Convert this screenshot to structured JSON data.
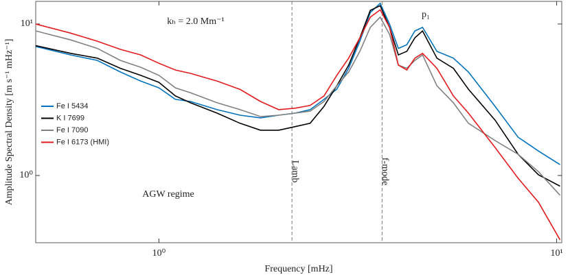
{
  "chart_data": {
    "type": "line",
    "xlabel": "Frequency [mHz]",
    "ylabel": "Amplitude Spectral Density [m s⁻¹ mHz⁻¹]",
    "xscale": "log",
    "yscale": "log",
    "xlim": [
      0.49,
      10.3
    ],
    "ylim": [
      0.36,
      14.1
    ],
    "xticks": [
      {
        "value": 1,
        "label": "10⁰"
      },
      {
        "value": 10,
        "label": "10¹"
      }
    ],
    "yticks": [
      {
        "value": 1,
        "label": "10⁰"
      },
      {
        "value": 10,
        "label": "10¹"
      }
    ],
    "legend": "center left",
    "annotations": [
      "kₕ = 2.0 Mm⁻¹",
      "p₁",
      "AGW regime"
    ],
    "vlines": [
      {
        "x": 2.16,
        "label": "Lamb"
      },
      {
        "x": 3.64,
        "label": "f-mode"
      }
    ],
    "x": [
      0.49,
      0.6,
      0.7,
      0.8,
      0.9,
      1.0,
      1.1,
      1.2,
      1.4,
      1.6,
      1.8,
      2.0,
      2.2,
      2.4,
      2.6,
      2.8,
      3.0,
      3.2,
      3.4,
      3.6,
      3.8,
      4.0,
      4.2,
      4.4,
      4.6,
      5.0,
      5.5,
      6,
      7,
      8,
      9,
      10.2
    ],
    "series": [
      {
        "name": "Fe I 5434",
        "color": "#0072bd",
        "values": [
          7.1,
          6.25,
          5.75,
          4.82,
          4.2,
          3.79,
          3.18,
          3.08,
          2.72,
          2.5,
          2.4,
          2.5,
          2.58,
          2.72,
          3.18,
          3.71,
          5.1,
          7.7,
          11.9,
          13.7,
          10,
          6.9,
          7.3,
          9.0,
          9.5,
          6.6,
          5.95,
          4.82,
          2.86,
          1.79,
          1.45,
          1.18
        ]
      },
      {
        "name": "K I 7699",
        "color": "#000000",
        "values": [
          7.2,
          6.4,
          5.95,
          5.1,
          4.58,
          4.12,
          3.35,
          3.02,
          2.58,
          2.21,
          1.99,
          1.99,
          2.1,
          2.21,
          2.86,
          3.91,
          5.35,
          8.1,
          12.3,
          13.2,
          9.5,
          6.25,
          6.6,
          8.1,
          9.0,
          5.95,
          5.1,
          3.71,
          2.32,
          1.38,
          1.01,
          0.85
        ]
      },
      {
        "name": "Fe I 7090",
        "color": "#808080",
        "values": [
          9.0,
          7.85,
          6.9,
          5.75,
          5.18,
          4.58,
          3.79,
          3.52,
          3.02,
          2.72,
          2.45,
          2.5,
          2.58,
          2.66,
          3.08,
          3.91,
          4.82,
          6.6,
          9.5,
          11.1,
          8.55,
          5.35,
          5.1,
          5.75,
          6.25,
          3.91,
          3.02,
          2.21,
          1.7,
          1.38,
          1.06,
          0.74
        ]
      },
      {
        "name": "Fe I 6173 (HMI)",
        "color": "#e31a1c",
        "values": [
          10,
          8.7,
          7.7,
          6.8,
          6.25,
          5.5,
          4.97,
          4.72,
          4.2,
          3.7,
          3.08,
          2.72,
          2.78,
          2.9,
          3.35,
          4.58,
          5.95,
          8.1,
          11.1,
          12.4,
          9.5,
          5.35,
          4.97,
          5.95,
          6.4,
          5.1,
          3.35,
          2.58,
          1.53,
          0.96,
          0.666,
          0.376
        ]
      }
    ]
  }
}
